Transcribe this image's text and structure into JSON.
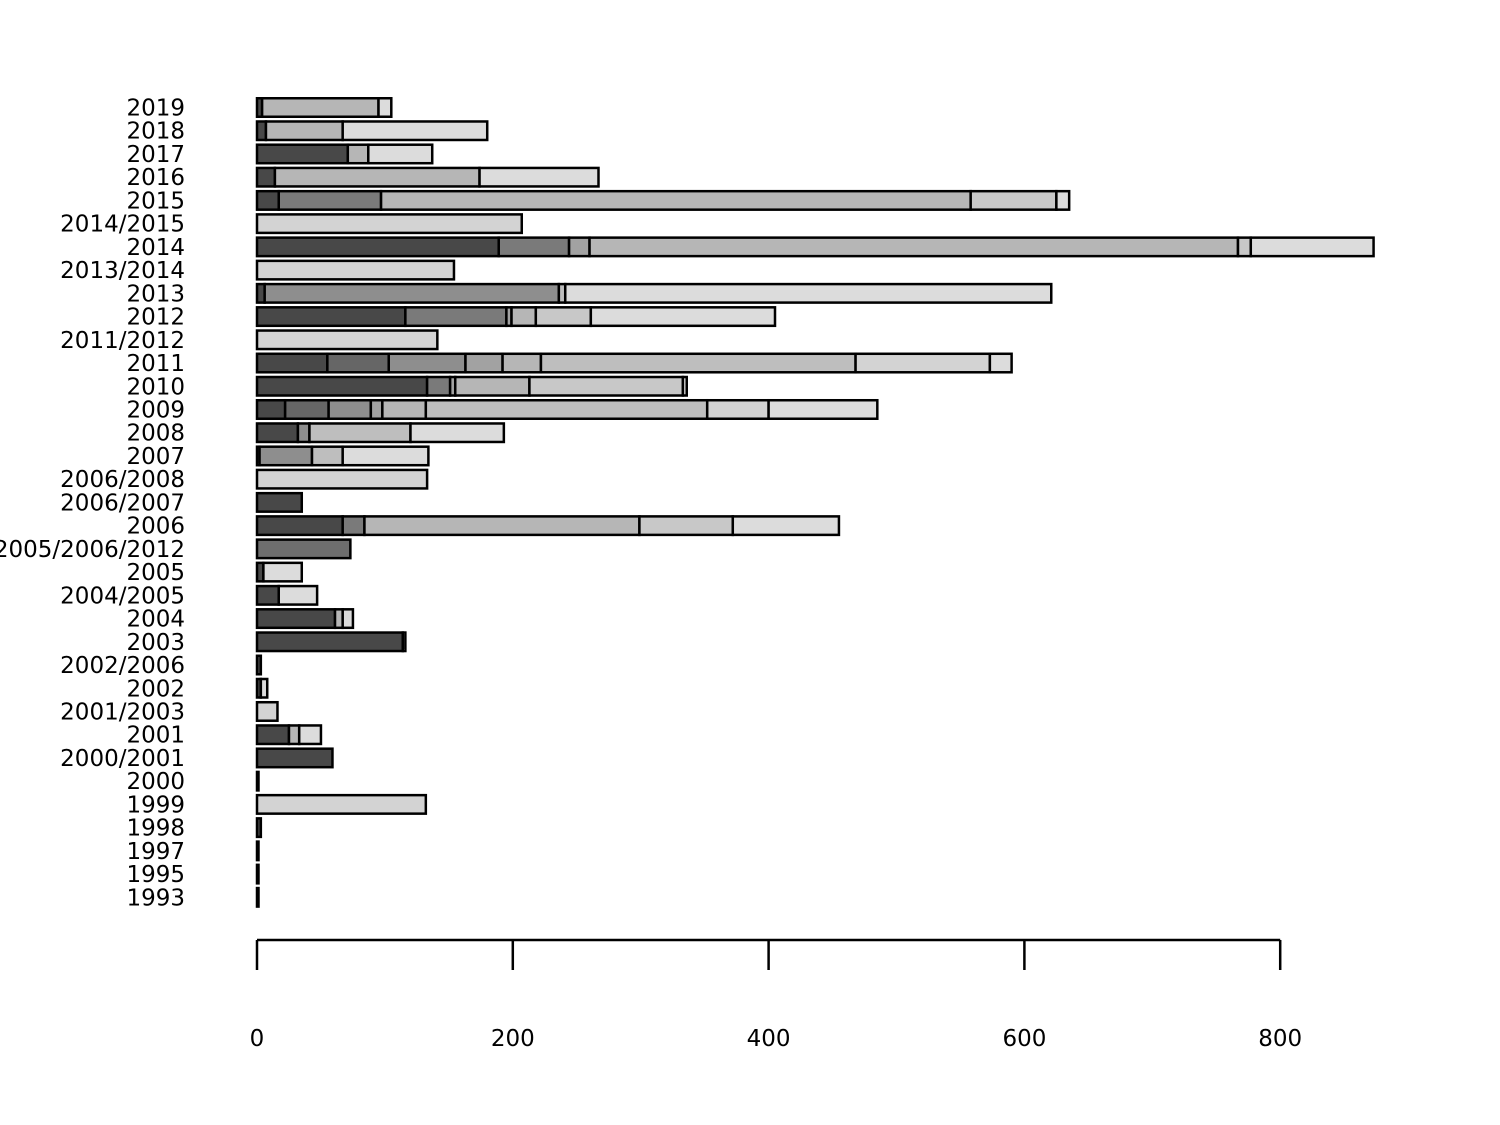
{
  "chart_data": {
    "type": "bar",
    "orientation": "horizontal",
    "stacked": true,
    "title": "",
    "xlabel": "",
    "ylabel": "",
    "xlim": [
      0,
      800
    ],
    "grid": false,
    "legend": "none",
    "x_ticks": [
      "0",
      "200",
      "400",
      "600",
      "800"
    ],
    "x_tick_values": [
      0,
      200,
      400,
      600,
      800
    ],
    "segment_colors": [
      "#484848",
      "#666666",
      "#7a7a7a",
      "#8e8e8e",
      "#a2a2a2",
      "#b6b6b6",
      "#bebebe",
      "#c8c8c8",
      "#d3d3d3",
      "#dcdcdc"
    ],
    "rows": [
      {
        "category": "2019",
        "segments": [
          4,
          91,
          10
        ]
      },
      {
        "category": "2018",
        "segments": [
          7,
          60,
          113
        ]
      },
      {
        "category": "2017",
        "segments": [
          71,
          16,
          50
        ]
      },
      {
        "category": "2016",
        "segments": [
          14,
          160,
          93
        ]
      },
      {
        "category": "2015",
        "segments": [
          17,
          80,
          461,
          67,
          10
        ]
      },
      {
        "category": "2014/2015",
        "segments": [
          207
        ]
      },
      {
        "category": "2014",
        "segments": [
          189,
          55,
          16,
          507,
          10,
          96
        ]
      },
      {
        "category": "2013/2014",
        "segments": [
          154
        ]
      },
      {
        "category": "2013",
        "segments": [
          6,
          230,
          5,
          380
        ]
      },
      {
        "category": "2012",
        "segments": [
          116,
          79,
          4,
          19,
          43,
          144
        ]
      },
      {
        "category": "2011/2012",
        "segments": [
          141
        ]
      },
      {
        "category": "2011",
        "segments": [
          55,
          48,
          60,
          29,
          30,
          246,
          105,
          17
        ]
      },
      {
        "category": "2010",
        "segments": [
          133,
          18,
          4,
          58,
          120,
          3
        ]
      },
      {
        "category": "2009",
        "segments": [
          22,
          34,
          33,
          9,
          34,
          220,
          48,
          85
        ]
      },
      {
        "category": "2008",
        "segments": [
          32,
          9,
          79,
          73
        ]
      },
      {
        "category": "2007",
        "segments": [
          2,
          41,
          24,
          67
        ]
      },
      {
        "category": "2006/2008",
        "segments": [
          133
        ]
      },
      {
        "category": "2006/2007",
        "segments": [
          35
        ]
      },
      {
        "category": "2006",
        "segments": [
          67,
          17,
          215,
          73,
          83
        ]
      },
      {
        "category": "2005/2006/2012",
        "segments": [
          73
        ]
      },
      {
        "category": "2005",
        "segments": [
          5,
          30
        ]
      },
      {
        "category": "2004/2005",
        "segments": [
          17,
          30
        ]
      },
      {
        "category": "2004",
        "segments": [
          61,
          6,
          8
        ]
      },
      {
        "category": "2003",
        "segments": [
          114,
          2
        ]
      },
      {
        "category": "2002/2006",
        "segments": [
          3
        ]
      },
      {
        "category": "2002",
        "segments": [
          3,
          5
        ]
      },
      {
        "category": "2001/2003",
        "segments": [
          16
        ]
      },
      {
        "category": "2001",
        "segments": [
          25,
          8,
          17
        ]
      },
      {
        "category": "2000/2001",
        "segments": [
          59
        ]
      },
      {
        "category": "2000",
        "segments": [
          1
        ]
      },
      {
        "category": "1999",
        "segments": [
          132
        ]
      },
      {
        "category": "1998",
        "segments": [
          3
        ]
      },
      {
        "category": "1997",
        "segments": [
          0.5
        ]
      },
      {
        "category": "1995",
        "segments": [
          0.5
        ]
      },
      {
        "category": "1993",
        "segments": [
          1
        ]
      }
    ]
  }
}
